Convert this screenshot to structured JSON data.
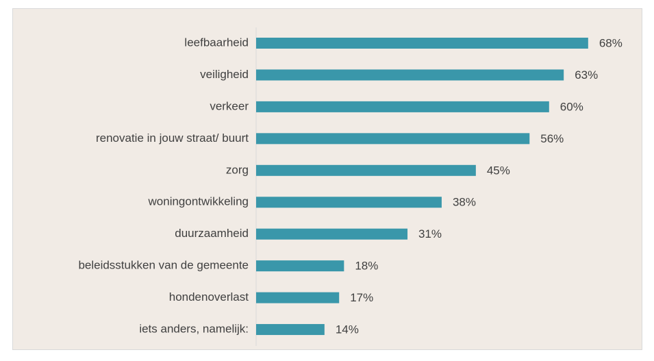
{
  "chart_data": {
    "type": "bar",
    "orientation": "horizontal",
    "categories": [
      "leefbaarheid",
      "veiligheid",
      "verkeer",
      "renovatie in jouw straat/ buurt",
      "zorg",
      "woningontwikkeling",
      "duurzaamheid",
      "beleidsstukken van de gemeente",
      "hondenoverlast",
      "iets anders, namelijk:"
    ],
    "values": [
      68,
      63,
      60,
      56,
      45,
      38,
      31,
      18,
      17,
      14
    ],
    "value_labels": [
      "68%",
      "63%",
      "60%",
      "56%",
      "45%",
      "38%",
      "31%",
      "18%",
      "17%",
      "14%"
    ],
    "color": "#3a97aa"
  }
}
